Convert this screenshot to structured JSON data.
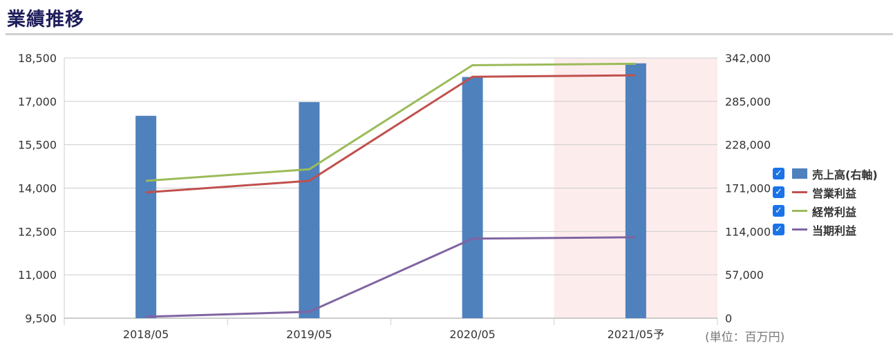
{
  "page_title": "業績推移",
  "unit_label": "(単位：百万円)",
  "legend": [
    {
      "label": "売上高(右軸)",
      "kind": "bar",
      "color": "#4f81bd",
      "checked": true
    },
    {
      "label": "営業利益",
      "kind": "line",
      "color": "#c0504d",
      "checked": true
    },
    {
      "label": "経常利益",
      "kind": "line",
      "color": "#9bbb59",
      "checked": true
    },
    {
      "label": "当期利益",
      "kind": "line",
      "color": "#8064a2",
      "checked": true
    }
  ],
  "chart_data": {
    "type": "bar",
    "categories": [
      "2018/05",
      "2019/05",
      "2020/05",
      "2021/05予"
    ],
    "forecast_category": "2021/05予",
    "y_left": {
      "ylim": [
        9500,
        18500
      ],
      "ticks": [
        "9,500",
        "11,000",
        "12,500",
        "14,000",
        "15,500",
        "17,000",
        "18,500"
      ]
    },
    "y_right": {
      "ylim": [
        0,
        342000
      ],
      "ticks": [
        "0",
        "57,000",
        "114,000",
        "171,000",
        "228,000",
        "285,000",
        "342,000"
      ]
    },
    "grid": true,
    "legend_position": "right",
    "series": [
      {
        "name": "売上高(右軸)",
        "type": "bar",
        "axis": "right",
        "color": "#4f81bd",
        "values": [
          266000,
          284000,
          317000,
          335000
        ]
      },
      {
        "name": "営業利益",
        "type": "line",
        "axis": "left",
        "color": "#c0504d",
        "values": [
          13850,
          14250,
          17850,
          17900
        ]
      },
      {
        "name": "経常利益",
        "type": "line",
        "axis": "left",
        "color": "#9bbb59",
        "values": [
          14250,
          14650,
          18250,
          18300
        ]
      },
      {
        "name": "当期利益",
        "type": "line",
        "axis": "left",
        "color": "#8064a2",
        "values": [
          9550,
          9720,
          12250,
          12300
        ]
      }
    ]
  }
}
